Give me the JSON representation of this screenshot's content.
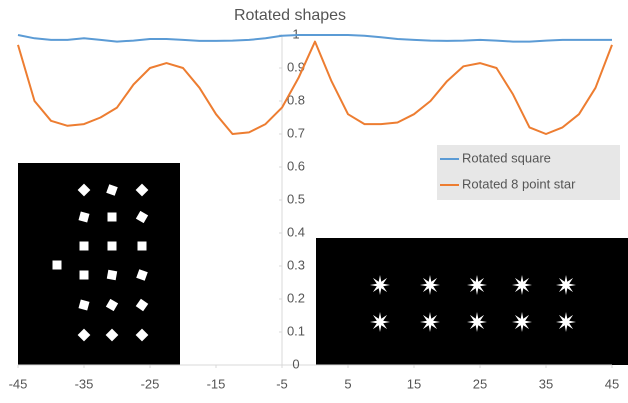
{
  "chart_data": {
    "type": "line",
    "title": "Rotated shapes",
    "x": [
      -45,
      -42.5,
      -40,
      -37.5,
      -35,
      -32.5,
      -30,
      -27.5,
      -25,
      -22.5,
      -20,
      -17.5,
      -15,
      -12.5,
      -10,
      -7.5,
      -5,
      -2.5,
      0,
      2.5,
      5,
      7.5,
      10,
      12.5,
      15,
      17.5,
      20,
      22.5,
      25,
      27.5,
      30,
      32.5,
      35,
      37.5,
      40,
      42.5,
      45
    ],
    "series": [
      {
        "name": "Rotated square",
        "color": "#5b9bd5",
        "values": [
          1.0,
          0.99,
          0.985,
          0.985,
          0.99,
          0.985,
          0.98,
          0.983,
          0.988,
          0.988,
          0.985,
          0.982,
          0.982,
          0.983,
          0.985,
          0.99,
          0.998,
          1.0,
          1.0,
          1.0,
          1.0,
          0.998,
          0.993,
          0.988,
          0.985,
          0.983,
          0.982,
          0.983,
          0.985,
          0.983,
          0.98,
          0.98,
          0.983,
          0.985,
          0.985,
          0.985,
          0.985
        ]
      },
      {
        "name": "Rotated 8 point star",
        "color": "#ed7d31",
        "values": [
          0.97,
          0.8,
          0.74,
          0.725,
          0.73,
          0.75,
          0.78,
          0.85,
          0.9,
          0.915,
          0.9,
          0.84,
          0.76,
          0.7,
          0.705,
          0.73,
          0.78,
          0.87,
          0.98,
          0.86,
          0.76,
          0.73,
          0.73,
          0.735,
          0.76,
          0.8,
          0.86,
          0.905,
          0.915,
          0.9,
          0.82,
          0.72,
          0.7,
          0.72,
          0.76,
          0.84,
          0.97
        ]
      }
    ],
    "xlim": [
      -45,
      45
    ],
    "xticks": [
      -45,
      -35,
      -25,
      -15,
      -5,
      5,
      15,
      25,
      35,
      45
    ],
    "ylim": [
      0,
      1
    ],
    "yticks": [
      0,
      0.1,
      0.2,
      0.3,
      0.4,
      0.5,
      0.6,
      0.7,
      0.8,
      0.9,
      1
    ],
    "legend": "right"
  }
}
